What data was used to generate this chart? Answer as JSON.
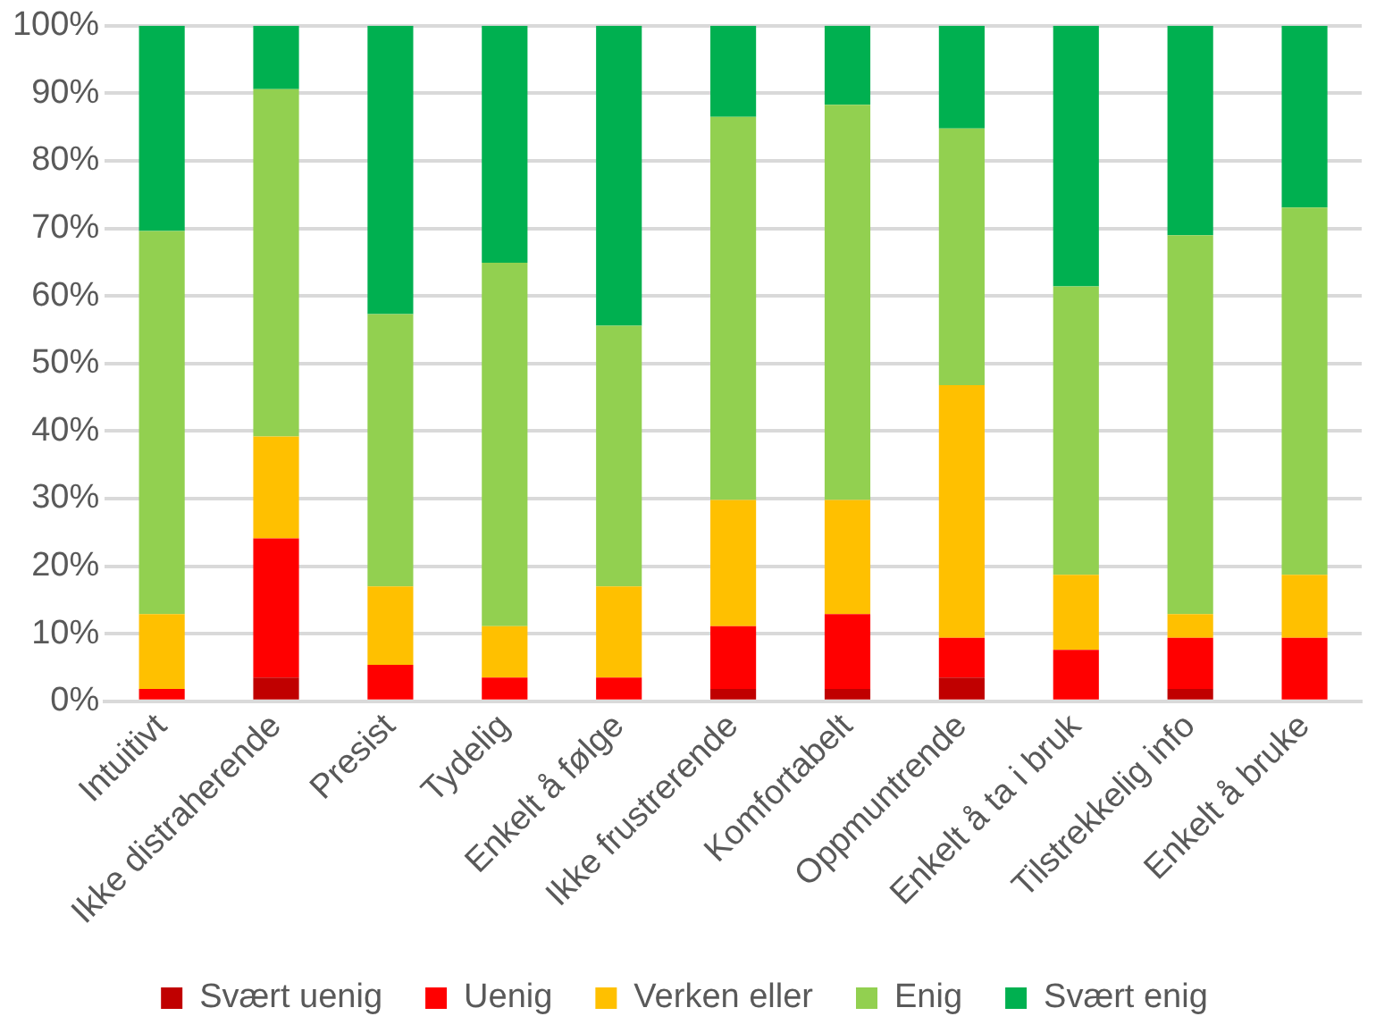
{
  "chart_data": {
    "type": "bar",
    "stacked": true,
    "categories": [
      "Intuitivt",
      "Ikke distraherende",
      "Presist",
      "Tydelig",
      "Enkelt å følge",
      "Ikke frustrerende",
      "Komfortabelt",
      "Oppmuntrende",
      "Enkelt å ta i bruk",
      "Tilstrekkelig info",
      "Enkelt å bruke"
    ],
    "series": [
      {
        "name": "Svært uenig",
        "color": "#c00000",
        "values": [
          0,
          3.5,
          0,
          0,
          0,
          1.8,
          1.8,
          3.5,
          0,
          1.8,
          0
        ]
      },
      {
        "name": "Uenig",
        "color": "#ff0000",
        "values": [
          1.8,
          20.6,
          5.4,
          3.5,
          3.5,
          9.3,
          11.1,
          5.9,
          7.6,
          7.6,
          9.4
        ]
      },
      {
        "name": "Verken eller",
        "color": "#ffc000",
        "values": [
          11.1,
          15.1,
          11.6,
          7.6,
          13.5,
          18.7,
          16.9,
          37.4,
          11.1,
          3.5,
          9.3
        ]
      },
      {
        "name": "Enig",
        "color": "#92d050",
        "values": [
          56.7,
          51.4,
          40.3,
          53.8,
          38.6,
          56.7,
          58.5,
          38.0,
          42.7,
          56.1,
          54.4
        ]
      },
      {
        "name": "Svært enig",
        "color": "#00b050",
        "values": [
          30.4,
          9.4,
          42.7,
          35.1,
          44.4,
          13.5,
          11.7,
          15.2,
          38.6,
          31.0,
          26.9
        ]
      }
    ],
    "ylim": [
      0,
      100
    ],
    "yticks": [
      {
        "value": 0,
        "label": "0%"
      },
      {
        "value": 10,
        "label": "10%"
      },
      {
        "value": 20,
        "label": "20%"
      },
      {
        "value": 30,
        "label": "30%"
      },
      {
        "value": 40,
        "label": "40%"
      },
      {
        "value": 50,
        "label": "50%"
      },
      {
        "value": 60,
        "label": "60%"
      },
      {
        "value": 70,
        "label": "70%"
      },
      {
        "value": 80,
        "label": "80%"
      },
      {
        "value": 90,
        "label": "90%"
      },
      {
        "value": 100,
        "label": "100%"
      }
    ],
    "grid": "y",
    "legend": "bottom"
  }
}
